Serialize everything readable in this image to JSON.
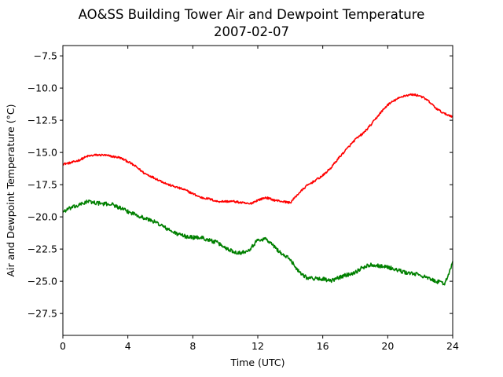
{
  "chart_data": {
    "type": "line",
    "title": "AO&SS Building Tower Air and Dewpoint Temperature",
    "subtitle": "2007-02-07",
    "xlabel": "Time (UTC)",
    "ylabel": "Air and Dewpoint Temperature (°C)",
    "xlim": [
      0,
      24
    ],
    "ylim": [
      -29.2,
      -6.7
    ],
    "x_ticks": [
      0,
      4,
      8,
      12,
      16,
      20,
      24
    ],
    "y_ticks": [
      -27.5,
      -25.0,
      -22.5,
      -20.0,
      -17.5,
      -15.0,
      -12.5,
      -10.0,
      -7.5
    ],
    "x_tick_labels": [
      "0",
      "4",
      "8",
      "12",
      "16",
      "20",
      "24"
    ],
    "y_tick_labels": [
      "−27.5",
      "−25.0",
      "−22.5",
      "−20.0",
      "−17.5",
      "−15.0",
      "−12.5",
      "−10.0",
      "−7.5"
    ],
    "grid": false,
    "series": [
      {
        "color": "#ff0000",
        "noise": 0.08,
        "x": [
          0,
          0.5,
          1,
          1.5,
          2,
          2.5,
          3,
          3.5,
          4,
          4.5,
          5,
          5.5,
          6,
          6.5,
          7,
          7.5,
          8,
          8.5,
          9,
          9.5,
          10,
          10.5,
          11,
          11.5,
          12,
          12.5,
          13,
          13.5,
          14,
          14.5,
          15,
          15.5,
          16,
          16.5,
          17,
          17.5,
          18,
          18.5,
          19,
          19.5,
          20,
          20.5,
          21,
          21.5,
          22,
          22.5,
          23,
          23.5,
          24
        ],
        "y": [
          -15.9,
          -15.8,
          -15.6,
          -15.3,
          -15.2,
          -15.2,
          -15.3,
          -15.4,
          -15.7,
          -16.1,
          -16.6,
          -16.9,
          -17.2,
          -17.5,
          -17.7,
          -17.9,
          -18.2,
          -18.5,
          -18.6,
          -18.8,
          -18.8,
          -18.8,
          -18.9,
          -19.0,
          -18.7,
          -18.5,
          -18.7,
          -18.8,
          -18.9,
          -18.2,
          -17.6,
          -17.2,
          -16.8,
          -16.2,
          -15.4,
          -14.7,
          -14.0,
          -13.5,
          -12.8,
          -12.0,
          -11.3,
          -10.9,
          -10.6,
          -10.5,
          -10.6,
          -11.0,
          -11.6,
          -12.0,
          -12.2
        ]
      },
      {
        "color": "#008000",
        "noise": 0.15,
        "x": [
          0,
          0.5,
          1,
          1.5,
          2,
          2.5,
          3,
          3.5,
          4,
          4.5,
          5,
          5.5,
          6,
          6.5,
          7,
          7.5,
          8,
          8.5,
          9,
          9.5,
          10,
          10.5,
          11,
          11.5,
          12,
          12.5,
          13,
          13.5,
          14,
          14.5,
          15,
          15.5,
          16,
          16.5,
          17,
          17.5,
          18,
          18.5,
          19,
          19.5,
          20,
          20.5,
          21,
          21.5,
          22,
          22.5,
          23,
          23.5,
          24
        ],
        "y": [
          -19.6,
          -19.3,
          -19.1,
          -18.8,
          -18.9,
          -19.0,
          -19.0,
          -19.3,
          -19.6,
          -19.8,
          -20.1,
          -20.3,
          -20.6,
          -21.0,
          -21.3,
          -21.5,
          -21.6,
          -21.6,
          -21.8,
          -22.0,
          -22.4,
          -22.7,
          -22.8,
          -22.5,
          -21.8,
          -21.7,
          -22.3,
          -22.9,
          -23.3,
          -24.2,
          -24.7,
          -24.8,
          -24.8,
          -25.0,
          -24.7,
          -24.5,
          -24.3,
          -23.9,
          -23.7,
          -23.8,
          -23.9,
          -24.1,
          -24.3,
          -24.4,
          -24.5,
          -24.8,
          -25.0,
          -25.2,
          -23.6
        ]
      }
    ]
  }
}
